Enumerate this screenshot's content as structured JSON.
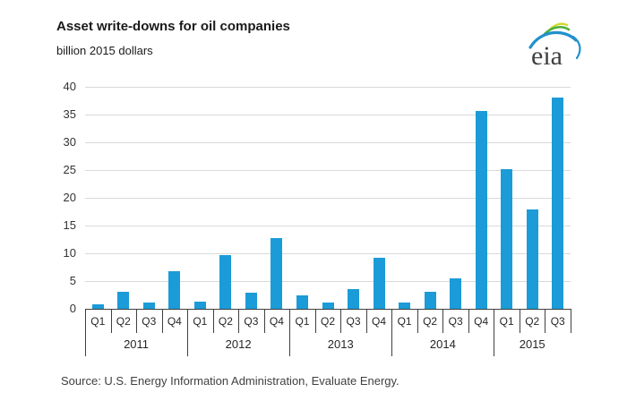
{
  "header": {
    "title": "Asset write-downs for oil companies",
    "subtitle": "billion 2015 dollars",
    "logo_text": "eia"
  },
  "footer": {
    "source": "Source:  U.S. Energy Information Administration, Evaluate Energy."
  },
  "colors": {
    "bar": "#1b9bd8",
    "gridline": "#d9d9d9",
    "axis": "#404040",
    "logo_blue": "#2191cc",
    "logo_green": "#4caf3f",
    "logo_yellow": "#cfdb2a",
    "logo_text_color": "#404040"
  },
  "chart_data": {
    "type": "bar",
    "title": "Asset write-downs for oil companies",
    "ylabel": "billion 2015 dollars",
    "ylim": [
      0,
      40
    ],
    "ytick_step": 5,
    "grid": true,
    "legend": false,
    "bar_color": "#1b9bd8",
    "groups": [
      {
        "year": "2011",
        "quarters": [
          "Q1",
          "Q2",
          "Q3",
          "Q4"
        ],
        "values": [
          0.8,
          3.1,
          1.2,
          6.8
        ]
      },
      {
        "year": "2012",
        "quarters": [
          "Q1",
          "Q2",
          "Q3",
          "Q4"
        ],
        "values": [
          1.3,
          9.6,
          2.9,
          12.7
        ]
      },
      {
        "year": "2013",
        "quarters": [
          "Q1",
          "Q2",
          "Q3",
          "Q4"
        ],
        "values": [
          2.5,
          1.2,
          3.5,
          9.2
        ]
      },
      {
        "year": "2014",
        "quarters": [
          "Q1",
          "Q2",
          "Q3",
          "Q4"
        ],
        "values": [
          1.1,
          3.0,
          5.5,
          35.7
        ]
      },
      {
        "year": "2015",
        "quarters": [
          "Q1",
          "Q2",
          "Q3"
        ],
        "values": [
          25.2,
          17.9,
          38.1
        ]
      }
    ]
  }
}
